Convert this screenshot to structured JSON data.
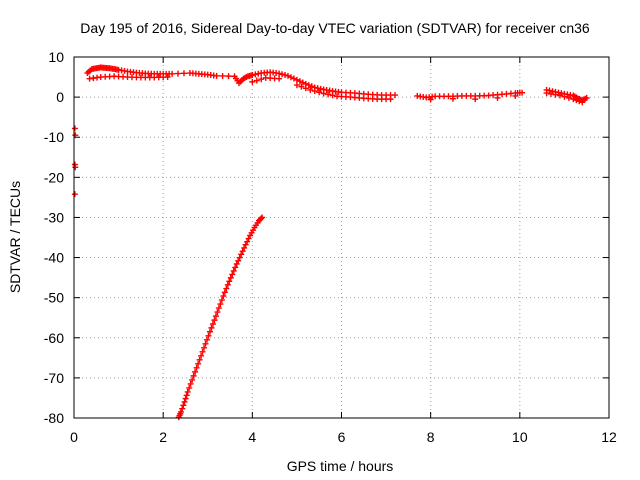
{
  "chart_data": {
    "type": "scatter",
    "title": "Day 195 of 2016, Sidereal Day-to-day VTEC variation (SDTVAR) for receiver cn36",
    "xlabel": "GPS time / hours",
    "ylabel": "SDTVAR / TECUs",
    "xlim": [
      0,
      12
    ],
    "ylim": [
      -80,
      10
    ],
    "xticks": [
      "0",
      "2",
      "4",
      "6",
      "8",
      "10",
      "12"
    ],
    "yticks": [
      "10",
      "0",
      "-10",
      "-20",
      "-30",
      "-40",
      "-50",
      "-60",
      "-70",
      "-80"
    ],
    "grid": true,
    "marker": "plus",
    "series_color": "#ff0000",
    "series": [
      {
        "name": "upper-band",
        "points": [
          [
            0.3,
            6.0
          ],
          [
            0.4,
            7.0
          ],
          [
            0.5,
            7.2
          ],
          [
            0.6,
            7.4
          ],
          [
            0.7,
            7.3
          ],
          [
            0.8,
            7.2
          ],
          [
            0.9,
            7.0
          ],
          [
            1.0,
            6.8
          ],
          [
            1.2,
            6.4
          ],
          [
            1.4,
            6.1
          ],
          [
            1.6,
            5.9
          ],
          [
            1.8,
            5.8
          ],
          [
            2.0,
            5.8
          ],
          [
            2.2,
            5.8
          ],
          [
            2.6,
            6.0
          ],
          [
            2.8,
            5.8
          ],
          [
            3.0,
            5.6
          ],
          [
            3.2,
            5.3
          ],
          [
            3.6,
            5.2
          ],
          [
            3.7,
            3.5
          ],
          [
            3.8,
            4.6
          ],
          [
            3.9,
            5.2
          ],
          [
            4.0,
            5.5
          ],
          [
            4.2,
            6.0
          ],
          [
            4.4,
            6.2
          ],
          [
            4.6,
            5.9
          ],
          [
            4.8,
            5.3
          ],
          [
            5.0,
            4.3
          ],
          [
            5.2,
            3.3
          ],
          [
            5.4,
            2.4
          ],
          [
            5.6,
            1.9
          ],
          [
            5.8,
            1.5
          ],
          [
            6.0,
            1.2
          ],
          [
            6.3,
            1.0
          ],
          [
            6.6,
            0.7
          ],
          [
            6.9,
            0.5
          ],
          [
            7.2,
            0.5
          ],
          [
            7.7,
            0.3
          ],
          [
            7.9,
            -0.1
          ],
          [
            8.1,
            0.2
          ],
          [
            8.4,
            0.2
          ],
          [
            8.7,
            0.3
          ],
          [
            9.0,
            0.3
          ],
          [
            9.3,
            0.4
          ],
          [
            9.6,
            0.7
          ],
          [
            9.9,
            1.0
          ],
          [
            10.05,
            1.1
          ],
          [
            10.6,
            1.8
          ],
          [
            10.8,
            1.3
          ],
          [
            11.0,
            0.8
          ],
          [
            11.2,
            0.4
          ],
          [
            11.3,
            -0.3
          ],
          [
            11.4,
            -0.8
          ],
          [
            11.5,
            -0.2
          ]
        ]
      },
      {
        "name": "upper-band-low-edge",
        "points": [
          [
            0.35,
            4.6
          ],
          [
            0.6,
            5.0
          ],
          [
            0.9,
            5.2
          ],
          [
            1.2,
            5.0
          ],
          [
            1.5,
            4.9
          ],
          [
            1.8,
            4.9
          ],
          [
            2.1,
            5.0
          ],
          [
            4.0,
            3.8
          ],
          [
            4.3,
            4.8
          ],
          [
            4.6,
            4.6
          ],
          [
            5.0,
            3.0
          ],
          [
            5.3,
            1.8
          ],
          [
            5.6,
            0.9
          ],
          [
            5.9,
            0.2
          ],
          [
            6.2,
            0.0
          ],
          [
            6.5,
            -0.3
          ],
          [
            6.8,
            -0.5
          ],
          [
            7.1,
            -0.5
          ],
          [
            8.0,
            -0.6
          ],
          [
            8.5,
            -0.4
          ],
          [
            9.0,
            -0.5
          ],
          [
            9.5,
            -0.2
          ],
          [
            9.9,
            0.3
          ],
          [
            10.6,
            1.0
          ],
          [
            10.9,
            0.4
          ],
          [
            11.2,
            -0.5
          ],
          [
            11.4,
            -1.3
          ]
        ]
      },
      {
        "name": "early-outliers",
        "points": [
          [
            0.02,
            -7.8
          ],
          [
            0.03,
            -9.5
          ],
          [
            0.02,
            -16.8
          ],
          [
            0.03,
            -17.5
          ],
          [
            0.02,
            -24.2
          ]
        ]
      },
      {
        "name": "descending-branch",
        "points": [
          [
            4.22,
            -30.0
          ],
          [
            4.15,
            -30.8
          ],
          [
            4.05,
            -32.5
          ],
          [
            3.95,
            -34.5
          ],
          [
            3.85,
            -36.8
          ],
          [
            3.75,
            -39.2
          ],
          [
            3.65,
            -41.6
          ],
          [
            3.55,
            -44.2
          ],
          [
            3.45,
            -46.8
          ],
          [
            3.35,
            -49.6
          ],
          [
            3.25,
            -52.6
          ],
          [
            3.15,
            -55.6
          ],
          [
            3.05,
            -58.5
          ],
          [
            2.95,
            -61.5
          ],
          [
            2.85,
            -64.5
          ],
          [
            2.75,
            -67.5
          ],
          [
            2.65,
            -70.5
          ],
          [
            2.55,
            -73.5
          ],
          [
            2.48,
            -76.0
          ],
          [
            2.4,
            -78.5
          ],
          [
            2.35,
            -79.8
          ]
        ]
      }
    ]
  }
}
